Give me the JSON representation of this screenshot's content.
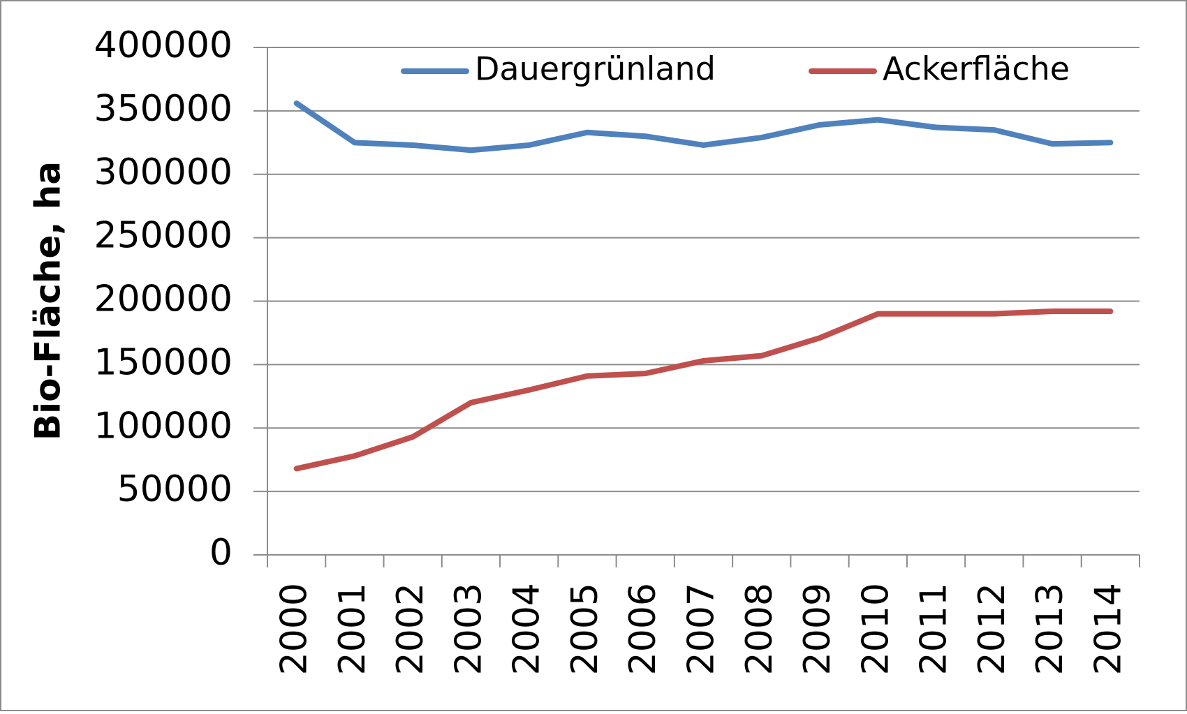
{
  "chart_data": {
    "type": "line",
    "y_label": "Bio-Fläche, ha",
    "categories": [
      "2000",
      "2001",
      "2002",
      "2003",
      "2004",
      "2005",
      "2006",
      "2007",
      "2008",
      "2009",
      "2010",
      "2011",
      "2012",
      "2013",
      "2014"
    ],
    "series": [
      {
        "name": "Dauergrünland",
        "color": "#4f81bd",
        "values": [
          356000,
          325000,
          323000,
          319000,
          323000,
          333000,
          330000,
          323000,
          329000,
          339000,
          343000,
          337000,
          335000,
          324000,
          325000
        ]
      },
      {
        "name": "Ackerfläche",
        "color": "#c0504d",
        "values": [
          68000,
          78000,
          93000,
          120000,
          130000,
          141000,
          143000,
          153000,
          157000,
          171000,
          190000,
          190000,
          190000,
          192000,
          192000
        ]
      }
    ],
    "ylim": [
      0,
      400000
    ],
    "yticks": [
      0,
      50000,
      100000,
      150000,
      200000,
      250000,
      300000,
      350000,
      400000
    ],
    "grid": true,
    "legend": "top"
  }
}
